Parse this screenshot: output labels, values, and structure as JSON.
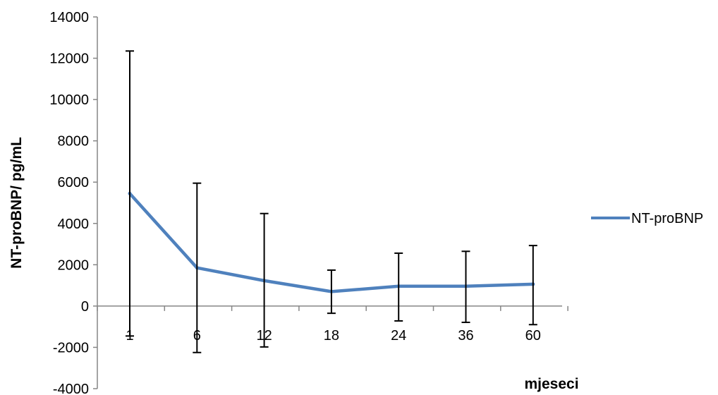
{
  "chart_data": {
    "type": "line",
    "title": "",
    "xlabel": "mjeseci",
    "ylabel": "NT-proBNP/ pg/mL",
    "categories": [
      "1",
      "6",
      "12",
      "18",
      "24",
      "36",
      "60"
    ],
    "ylim": [
      -4000,
      14000
    ],
    "yticks": [
      14000,
      12000,
      10000,
      8000,
      6000,
      4000,
      2000,
      0,
      -2000,
      -4000
    ],
    "grid": false,
    "legend_position": "right",
    "series": [
      {
        "name": "NT-proBNP",
        "color": "#4F81BD",
        "values": [
          5450,
          1850,
          1230,
          700,
          960,
          960,
          1060
        ],
        "error_upper": [
          12350,
          5950,
          4480,
          1740,
          2560,
          2650,
          2930
        ],
        "error_lower": [
          -1450,
          -2250,
          -1980,
          -350,
          -720,
          -790,
          -900
        ]
      }
    ]
  }
}
